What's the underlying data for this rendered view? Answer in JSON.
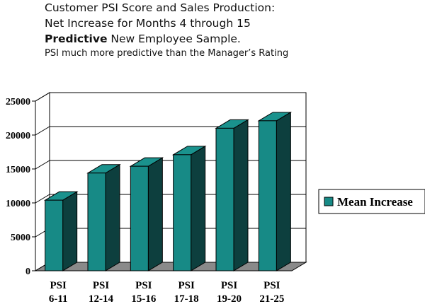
{
  "header": {
    "line1": "Customer PSI Score and Sales Production:",
    "line2": "Net Increase for Months 4 through 15",
    "line3_bold": "Predictive",
    "line3_rest": " New Employee Sample.",
    "line4": "PSI much more predictive than the Manager’s Rating"
  },
  "colors": {
    "bar_front": "#178a86",
    "bar_side": "#0d3f3e",
    "bar_top": "#1a928d",
    "floor": "#8a8a8a"
  },
  "chart_data": {
    "type": "bar",
    "categories": [
      [
        "PSI",
        "6-11"
      ],
      [
        "PSI",
        "12-14"
      ],
      [
        "PSI",
        "15-16"
      ],
      [
        "PSI",
        "17-18"
      ],
      [
        "PSI",
        "19-20"
      ],
      [
        "PSI",
        "21-25"
      ]
    ],
    "series": [
      {
        "name": "Mean Increase",
        "values": [
          10400,
          14400,
          15400,
          17100,
          21000,
          22100
        ]
      }
    ],
    "yticks": [
      "0",
      "5000",
      "10000",
      "15000",
      "20000",
      "25000"
    ],
    "ylim": [
      0,
      25000
    ],
    "grid": true,
    "legend": "right",
    "three_d": true
  }
}
